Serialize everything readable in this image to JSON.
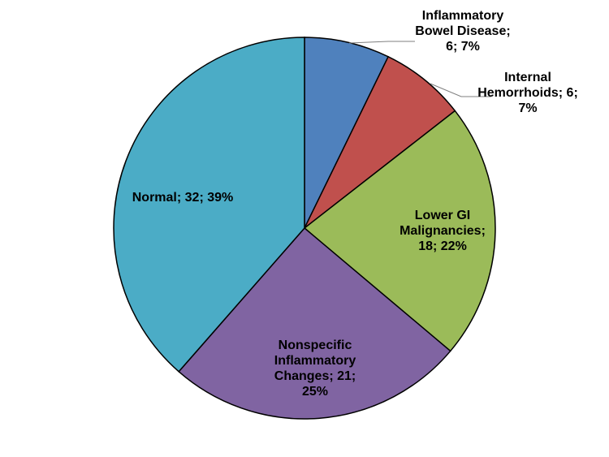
{
  "chart_data": {
    "type": "pie",
    "title": "",
    "start_angle_deg": 0,
    "direction": "clockwise",
    "slices": [
      {
        "category": "Inflammatory Bowel Disease",
        "value": 6,
        "percent": "7%",
        "label_lines": [
          "Inflammatory",
          "Bowel Disease;",
          "6; 7%"
        ],
        "color": "#4F81BD"
      },
      {
        "category": "Internal Hemorrhoids",
        "value": 6,
        "percent": "7%",
        "label_lines": [
          "Internal",
          "Hemorrhoids; 6;",
          "7%"
        ],
        "color": "#C0504D"
      },
      {
        "category": "Lower GI Malignancies",
        "value": 18,
        "percent": "22%",
        "label_lines": [
          "Lower GI",
          "Malignancies;",
          "18; 22%"
        ],
        "color": "#9BBB59"
      },
      {
        "category": "Nonspecific Inflammatory Changes",
        "value": 21,
        "percent": "25%",
        "label_lines": [
          "Nonspecific",
          "Inflammatory",
          "Changes; 21;",
          "25%"
        ],
        "color": "#8064A2"
      },
      {
        "category": "Normal",
        "value": 32,
        "percent": "39%",
        "label_lines": [
          "Normal; 32; 39%"
        ],
        "color": "#4BACC6"
      }
    ],
    "legend": "none"
  }
}
